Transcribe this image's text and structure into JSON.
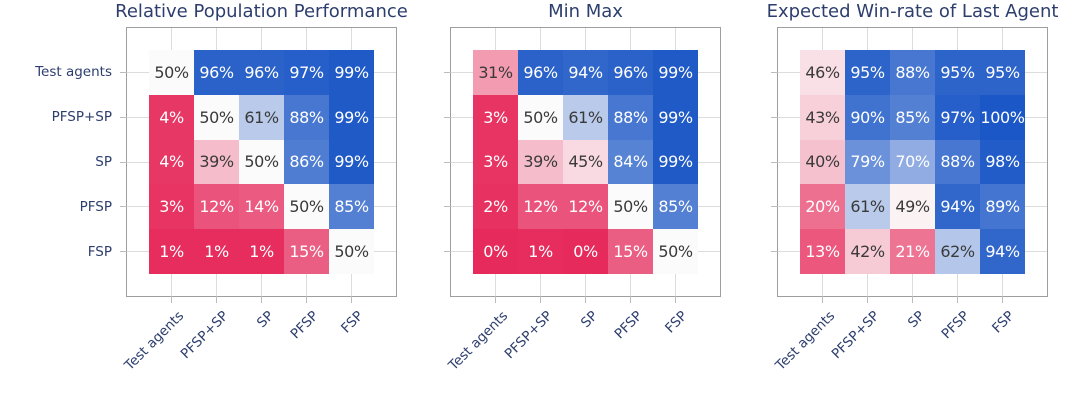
{
  "chart_data": [
    {
      "type": "heatmap",
      "title": "Relative Population Performance",
      "rows": [
        "Test agents",
        "PFSP+SP",
        "SP",
        "PFSP",
        "FSP"
      ],
      "columns": [
        "Test agents",
        "PFSP+SP",
        "SP",
        "PFSP",
        "FSP"
      ],
      "unit": "%",
      "values": [
        [
          50,
          96,
          96,
          97,
          99
        ],
        [
          4,
          50,
          61,
          88,
          99
        ],
        [
          4,
          39,
          50,
          86,
          99
        ],
        [
          3,
          12,
          14,
          50,
          85
        ],
        [
          1,
          1,
          1,
          15,
          50
        ]
      ],
      "value_range": [
        0,
        100
      ],
      "grid": true,
      "show_row_labels": true
    },
    {
      "type": "heatmap",
      "title": "Min Max",
      "rows": [
        "Test agents",
        "PFSP+SP",
        "SP",
        "PFSP",
        "FSP"
      ],
      "columns": [
        "Test agents",
        "PFSP+SP",
        "SP",
        "PFSP",
        "FSP"
      ],
      "unit": "%",
      "values": [
        [
          31,
          96,
          94,
          96,
          99
        ],
        [
          3,
          50,
          61,
          88,
          99
        ],
        [
          3,
          39,
          45,
          84,
          99
        ],
        [
          2,
          12,
          12,
          50,
          85
        ],
        [
          0,
          1,
          0,
          15,
          50
        ]
      ],
      "value_range": [
        0,
        100
      ],
      "grid": true,
      "show_row_labels": false
    },
    {
      "type": "heatmap",
      "title": "Expected Win-rate of Last Agent",
      "rows": [
        "Test agents",
        "PFSP+SP",
        "SP",
        "PFSP",
        "FSP"
      ],
      "columns": [
        "Test agents",
        "PFSP+SP",
        "SP",
        "PFSP",
        "FSP"
      ],
      "unit": "%",
      "values": [
        [
          46,
          95,
          88,
          95,
          95
        ],
        [
          43,
          90,
          85,
          97,
          100
        ],
        [
          40,
          79,
          70,
          88,
          98
        ],
        [
          20,
          61,
          49,
          94,
          89
        ],
        [
          13,
          42,
          21,
          62,
          94
        ]
      ],
      "value_range": [
        0,
        100
      ],
      "grid": true,
      "show_row_labels": false
    }
  ],
  "style": {
    "colormap_low": "#e62a5b",
    "colormap_mid": "#fcfbfb",
    "colormap_high": "#1b57c6",
    "title_color": "#2d3e6e",
    "axis_label_color": "#2d3e6e",
    "cell_text_dark": "#3a3a3a",
    "cell_text_light": "#ffffff",
    "grid_color": "#dcdcdc",
    "tick_color": "#bcbcbc",
    "spine_color": "#9e9e9e"
  }
}
